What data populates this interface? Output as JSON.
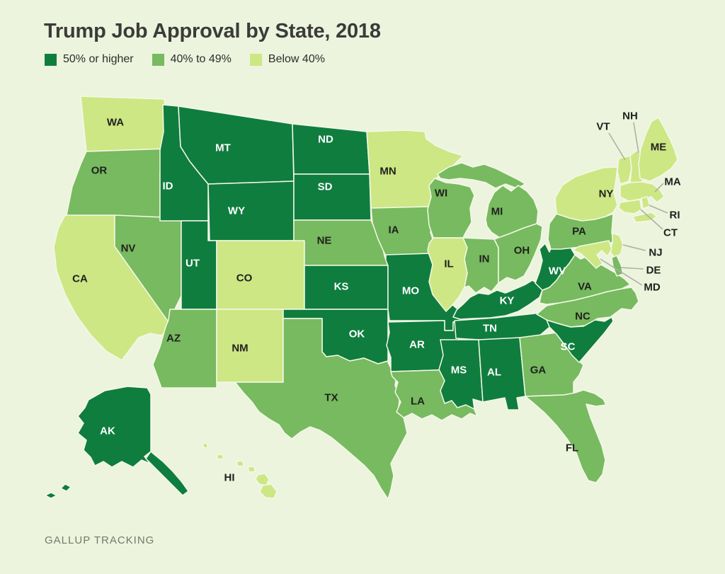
{
  "title": "Trump Job Approval by State, 2018",
  "source": "GALLUP TRACKING",
  "legend": [
    {
      "key": "high",
      "label": "50% or higher",
      "color": "#0f7d3e"
    },
    {
      "key": "mid",
      "label": "40% to 49%",
      "color": "#77ba5f"
    },
    {
      "key": "low",
      "label": "Below 40%",
      "color": "#cde784"
    }
  ],
  "map": {
    "background": "#ecf4dd",
    "state_border": "#f4f8e8",
    "label_on_dark": "#ffffff",
    "label_on_light": "#21211f",
    "callout_line": "#adb2a5"
  },
  "states": [
    {
      "abbr": "WA",
      "band": "low"
    },
    {
      "abbr": "OR",
      "band": "mid"
    },
    {
      "abbr": "CA",
      "band": "low"
    },
    {
      "abbr": "NV",
      "band": "mid"
    },
    {
      "abbr": "ID",
      "band": "high"
    },
    {
      "abbr": "MT",
      "band": "high"
    },
    {
      "abbr": "WY",
      "band": "high"
    },
    {
      "abbr": "UT",
      "band": "high"
    },
    {
      "abbr": "CO",
      "band": "low"
    },
    {
      "abbr": "AZ",
      "band": "mid"
    },
    {
      "abbr": "NM",
      "band": "low"
    },
    {
      "abbr": "ND",
      "band": "high"
    },
    {
      "abbr": "SD",
      "band": "high"
    },
    {
      "abbr": "NE",
      "band": "mid"
    },
    {
      "abbr": "KS",
      "band": "high"
    },
    {
      "abbr": "OK",
      "band": "high"
    },
    {
      "abbr": "TX",
      "band": "mid"
    },
    {
      "abbr": "MN",
      "band": "low"
    },
    {
      "abbr": "IA",
      "band": "mid"
    },
    {
      "abbr": "MO",
      "band": "high"
    },
    {
      "abbr": "AR",
      "band": "high"
    },
    {
      "abbr": "LA",
      "band": "mid"
    },
    {
      "abbr": "WI",
      "band": "mid"
    },
    {
      "abbr": "IL",
      "band": "low"
    },
    {
      "abbr": "MI",
      "band": "mid"
    },
    {
      "abbr": "IN",
      "band": "mid"
    },
    {
      "abbr": "OH",
      "band": "mid"
    },
    {
      "abbr": "KY",
      "band": "high"
    },
    {
      "abbr": "TN",
      "band": "high"
    },
    {
      "abbr": "MS",
      "band": "high"
    },
    {
      "abbr": "AL",
      "band": "high"
    },
    {
      "abbr": "GA",
      "band": "mid"
    },
    {
      "abbr": "FL",
      "band": "mid"
    },
    {
      "abbr": "SC",
      "band": "high"
    },
    {
      "abbr": "NC",
      "band": "mid"
    },
    {
      "abbr": "VA",
      "band": "mid"
    },
    {
      "abbr": "WV",
      "band": "high"
    },
    {
      "abbr": "PA",
      "band": "mid"
    },
    {
      "abbr": "NY",
      "band": "low"
    },
    {
      "abbr": "VT",
      "band": "low"
    },
    {
      "abbr": "NH",
      "band": "low"
    },
    {
      "abbr": "ME",
      "band": "low"
    },
    {
      "abbr": "MA",
      "band": "low"
    },
    {
      "abbr": "RI",
      "band": "low"
    },
    {
      "abbr": "CT",
      "band": "low"
    },
    {
      "abbr": "NJ",
      "band": "low"
    },
    {
      "abbr": "DE",
      "band": "mid"
    },
    {
      "abbr": "MD",
      "band": "low"
    },
    {
      "abbr": "AK",
      "band": "high"
    },
    {
      "abbr": "HI",
      "band": "low"
    }
  ]
}
